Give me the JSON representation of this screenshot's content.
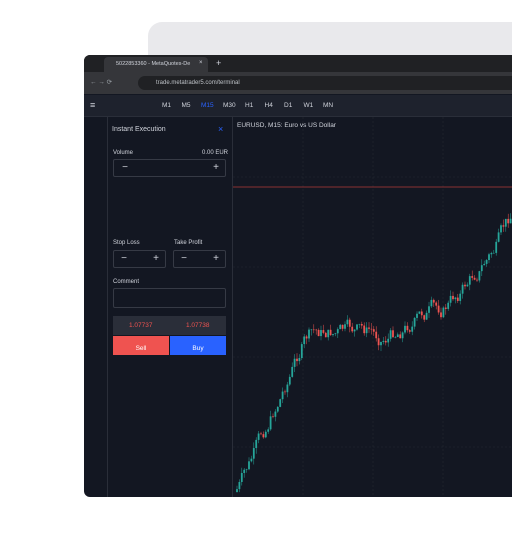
{
  "browser": {
    "tab_title": "5022853360 - MetaQuotes-De",
    "url": "trade.metatrader5.com/terminal"
  },
  "toolbar": {
    "timeframes": [
      "M1",
      "M5",
      "M15",
      "M30",
      "H1",
      "H4",
      "D1",
      "W1",
      "MN"
    ],
    "active_timeframe": "M15"
  },
  "order_panel": {
    "mode": "Instant Execution",
    "volume_label": "Volume",
    "volume_value": "0.00 EUR",
    "stop_loss_label": "Stop Loss",
    "take_profit_label": "Take Profit",
    "comment_label": "Comment",
    "sell_price": "1.07737",
    "buy_price": "1.07738",
    "sell_button": "Sell",
    "buy_button": "Buy"
  },
  "chart": {
    "title": "EURUSD, M15: Euro vs US Dollar"
  }
}
